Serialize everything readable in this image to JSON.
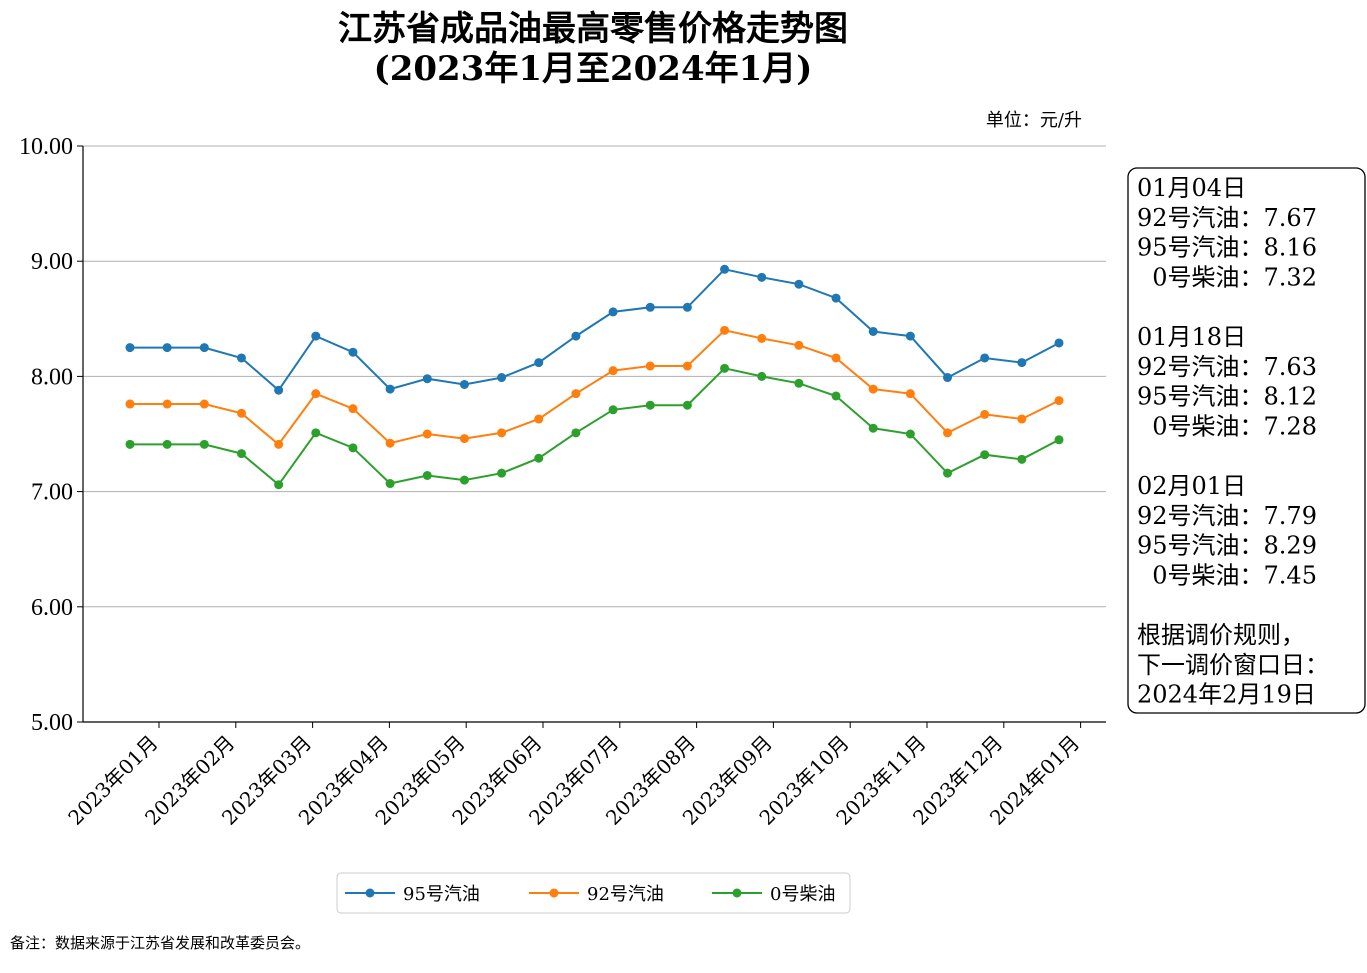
{
  "page": {
    "title_line1": "江苏省成品油最高零售价格走势图",
    "title_line2": "(2023年1月至2024年1月)",
    "unit": "单位：元/升",
    "footnote": "备注：数据来源于江苏省发展和改革委员会。"
  },
  "info_box": {
    "lines": [
      "01月04日",
      "92号汽油：7.67",
      "95号汽油：8.16",
      "  0号柴油：7.32",
      "",
      "01月18日",
      "92号汽油：7.63",
      "95号汽油：8.12",
      "  0号柴油：7.28",
      "",
      "02月01日",
      "92号汽油：7.79",
      "95号汽油：8.29",
      "  0号柴油：7.45",
      "",
      "根据调价规则，",
      "下一调价窗口日：",
      "2024年2月19日"
    ]
  },
  "chart_data": {
    "type": "line",
    "ylim": [
      5.0,
      10.0
    ],
    "y_ticks": [
      "5.00",
      "6.00",
      "7.00",
      "8.00",
      "9.00",
      "10.00"
    ],
    "y_tick_values": [
      5,
      6,
      7,
      8,
      9,
      10
    ],
    "grid": "horizontal",
    "legend_position": "bottom-center",
    "x_tick_labels": [
      "2023年01月",
      "2023年02月",
      "2023年03月",
      "2023年04月",
      "2023年05月",
      "2023年06月",
      "2023年07月",
      "2023年08月",
      "2023年09月",
      "2023年10月",
      "2023年11月",
      "2023年12月",
      "2024年01月"
    ],
    "n_points": 26,
    "series": [
      {
        "name": "95号汽油",
        "color": "#1f77b4",
        "values": [
          8.25,
          8.25,
          8.25,
          8.16,
          7.88,
          8.35,
          8.21,
          7.89,
          7.98,
          7.93,
          7.99,
          8.12,
          8.35,
          8.56,
          8.6,
          8.6,
          8.93,
          8.86,
          8.8,
          8.68,
          8.39,
          8.35,
          7.99,
          8.16,
          8.12,
          8.29
        ]
      },
      {
        "name": "92号汽油",
        "color": "#ff7f0e",
        "values": [
          7.76,
          7.76,
          7.76,
          7.68,
          7.41,
          7.85,
          7.72,
          7.42,
          7.5,
          7.46,
          7.51,
          7.63,
          7.85,
          8.05,
          8.09,
          8.09,
          8.4,
          8.33,
          8.27,
          8.16,
          7.89,
          7.85,
          7.51,
          7.67,
          7.63,
          7.79
        ]
      },
      {
        "name": "0号柴油",
        "color": "#2ca02c",
        "values": [
          7.41,
          7.41,
          7.41,
          7.33,
          7.06,
          7.51,
          7.38,
          7.07,
          7.14,
          7.1,
          7.16,
          7.29,
          7.51,
          7.71,
          7.75,
          7.75,
          8.07,
          8.0,
          7.94,
          7.83,
          7.55,
          7.5,
          7.16,
          7.32,
          7.28,
          7.45
        ]
      }
    ]
  }
}
